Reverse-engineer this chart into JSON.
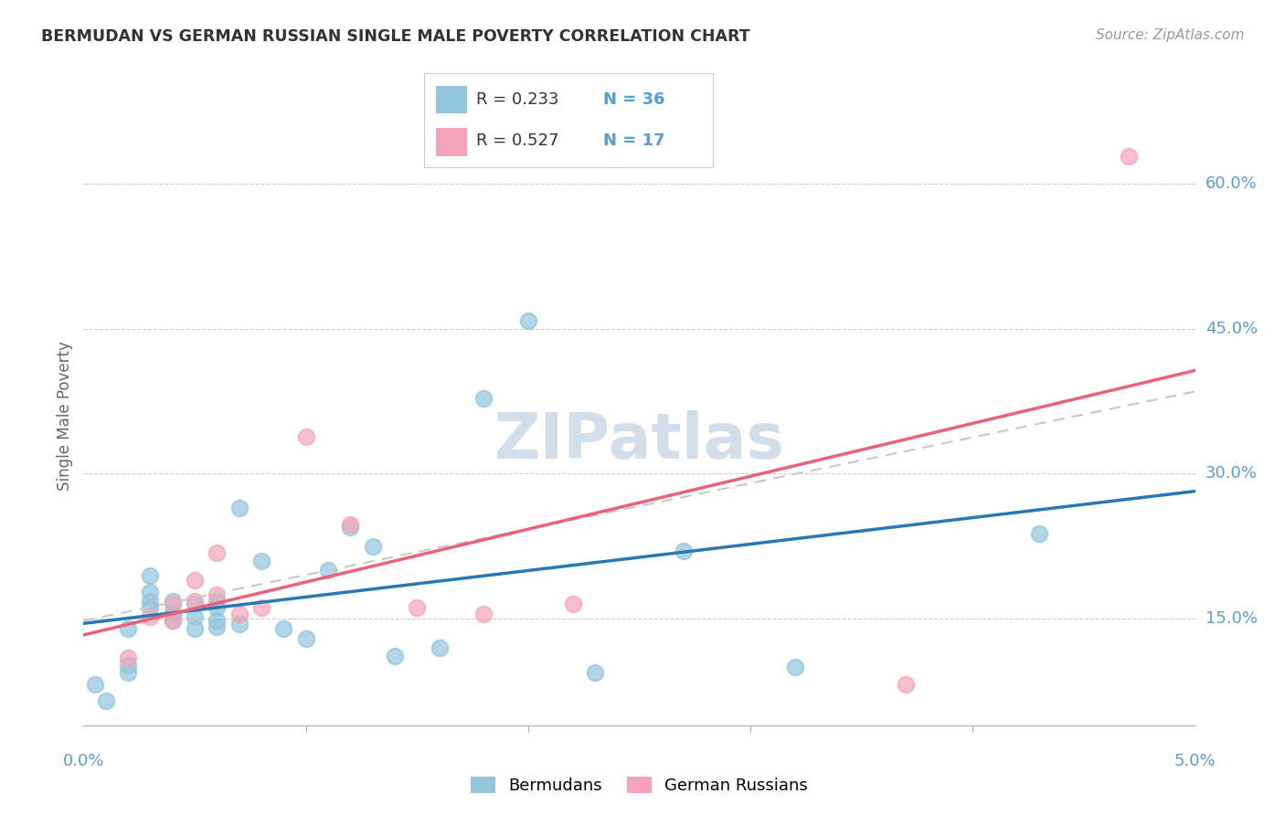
{
  "title": "BERMUDAN VS GERMAN RUSSIAN SINGLE MALE POVERTY CORRELATION CHART",
  "source": "Source: ZipAtlas.com",
  "ylabel": "Single Male Poverty",
  "ytick_labels": [
    "15.0%",
    "30.0%",
    "45.0%",
    "60.0%"
  ],
  "ytick_values": [
    0.15,
    0.3,
    0.45,
    0.6
  ],
  "xlim": [
    0.0,
    0.05
  ],
  "ylim": [
    0.04,
    0.68
  ],
  "legend_blue_r": "R = 0.233",
  "legend_blue_n": "N = 36",
  "legend_pink_r": "R = 0.527",
  "legend_pink_n": "N = 17",
  "blue_scatter": "#92c5de",
  "pink_scatter": "#f4a4b8",
  "blue_line": "#2878b5",
  "pink_line": "#e8637a",
  "dash_color": "#c8c8c8",
  "tick_color": "#5b9bd5",
  "grid_color": "#cccccc",
  "bg": "#ffffff",
  "bermudans_x": [
    0.0005,
    0.001,
    0.002,
    0.002,
    0.002,
    0.003,
    0.003,
    0.003,
    0.003,
    0.004,
    0.004,
    0.004,
    0.004,
    0.005,
    0.005,
    0.005,
    0.006,
    0.006,
    0.006,
    0.006,
    0.007,
    0.007,
    0.008,
    0.009,
    0.01,
    0.011,
    0.012,
    0.013,
    0.014,
    0.016,
    0.018,
    0.02,
    0.023,
    0.027,
    0.032,
    0.043
  ],
  "bermudans_y": [
    0.082,
    0.065,
    0.102,
    0.095,
    0.14,
    0.162,
    0.168,
    0.178,
    0.195,
    0.148,
    0.156,
    0.168,
    0.155,
    0.14,
    0.152,
    0.165,
    0.142,
    0.168,
    0.148,
    0.162,
    0.145,
    0.265,
    0.21,
    0.14,
    0.13,
    0.2,
    0.245,
    0.225,
    0.112,
    0.12,
    0.378,
    0.458,
    0.095,
    0.22,
    0.1,
    0.238
  ],
  "german_russians_x": [
    0.002,
    0.003,
    0.004,
    0.004,
    0.005,
    0.005,
    0.006,
    0.006,
    0.007,
    0.008,
    0.01,
    0.012,
    0.015,
    0.018,
    0.022,
    0.037,
    0.047
  ],
  "german_russians_y": [
    0.11,
    0.152,
    0.148,
    0.165,
    0.168,
    0.19,
    0.175,
    0.218,
    0.155,
    0.162,
    0.338,
    0.248,
    0.162,
    0.155,
    0.165,
    0.082,
    0.628
  ]
}
